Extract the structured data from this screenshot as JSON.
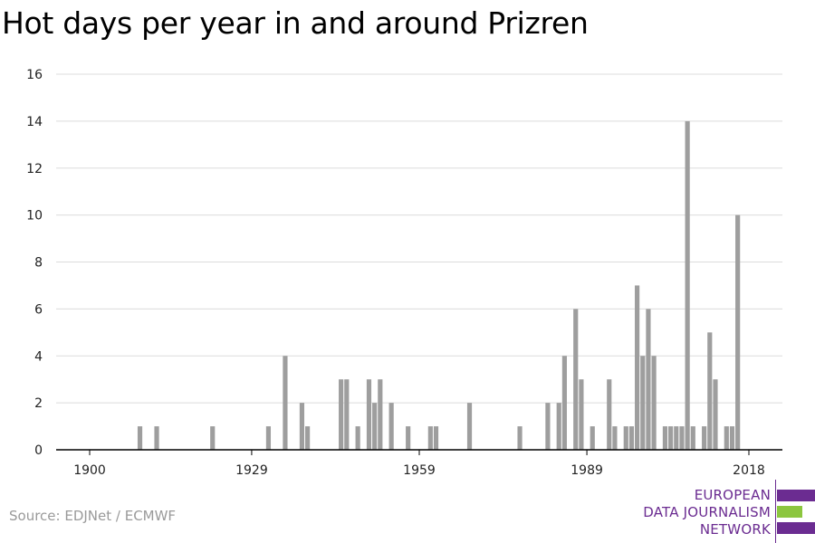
{
  "title": "Hot days per year in and around Prizren",
  "source": "Source: EDJNet / ECMWF",
  "logo": {
    "lines": [
      "EUROPEAN",
      "DATA JOURNALISM",
      "NETWORK"
    ],
    "colors": {
      "purple": "#6b2c91",
      "green": "#8cc63f"
    }
  },
  "chart_data": {
    "type": "bar",
    "title": "Hot days per year in and around Prizren",
    "xlabel": "",
    "ylabel": "",
    "xlim": [
      1894,
      2024
    ],
    "ylim": [
      0,
      16
    ],
    "x_ticks": [
      1900,
      1929,
      1959,
      1989,
      2018
    ],
    "y_ticks": [
      0,
      2,
      4,
      6,
      8,
      10,
      12,
      14,
      16
    ],
    "grid": true,
    "bar_color": "#9e9e9e",
    "points": [
      {
        "x": 1909,
        "y": 1
      },
      {
        "x": 1912,
        "y": 1
      },
      {
        "x": 1922,
        "y": 1
      },
      {
        "x": 1932,
        "y": 1
      },
      {
        "x": 1935,
        "y": 4
      },
      {
        "x": 1938,
        "y": 2
      },
      {
        "x": 1939,
        "y": 1
      },
      {
        "x": 1945,
        "y": 3
      },
      {
        "x": 1946,
        "y": 3
      },
      {
        "x": 1948,
        "y": 1
      },
      {
        "x": 1950,
        "y": 3
      },
      {
        "x": 1951,
        "y": 2
      },
      {
        "x": 1952,
        "y": 3
      },
      {
        "x": 1954,
        "y": 2
      },
      {
        "x": 1957,
        "y": 1
      },
      {
        "x": 1961,
        "y": 1
      },
      {
        "x": 1962,
        "y": 1
      },
      {
        "x": 1968,
        "y": 2
      },
      {
        "x": 1977,
        "y": 1
      },
      {
        "x": 1982,
        "y": 2
      },
      {
        "x": 1984,
        "y": 2
      },
      {
        "x": 1985,
        "y": 4
      },
      {
        "x": 1987,
        "y": 6
      },
      {
        "x": 1988,
        "y": 3
      },
      {
        "x": 1990,
        "y": 1
      },
      {
        "x": 1993,
        "y": 3
      },
      {
        "x": 1994,
        "y": 1
      },
      {
        "x": 1996,
        "y": 1
      },
      {
        "x": 1997,
        "y": 1
      },
      {
        "x": 1998,
        "y": 7
      },
      {
        "x": 1999,
        "y": 4
      },
      {
        "x": 2000,
        "y": 6
      },
      {
        "x": 2001,
        "y": 4
      },
      {
        "x": 2003,
        "y": 1
      },
      {
        "x": 2004,
        "y": 1
      },
      {
        "x": 2005,
        "y": 1
      },
      {
        "x": 2006,
        "y": 1
      },
      {
        "x": 2007,
        "y": 14
      },
      {
        "x": 2008,
        "y": 1
      },
      {
        "x": 2010,
        "y": 1
      },
      {
        "x": 2011,
        "y": 5
      },
      {
        "x": 2012,
        "y": 3
      },
      {
        "x": 2014,
        "y": 1
      },
      {
        "x": 2015,
        "y": 1
      },
      {
        "x": 2016,
        "y": 10
      }
    ]
  }
}
